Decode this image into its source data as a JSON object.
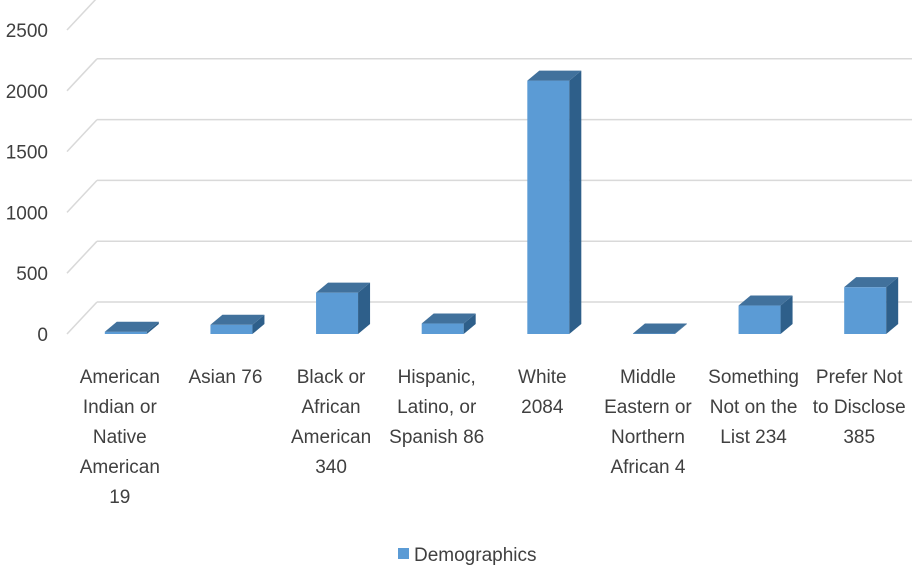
{
  "chart_data": {
    "type": "bar",
    "style": "3d-column",
    "categories": [
      "American Indian or Native American 19",
      "Asian 76",
      "Black or African American 340",
      "Hispanic, Latino, or Spanish 86",
      "White 2084",
      "Middle Eastern or Northern African 4",
      "Something Not on the List 234",
      "Prefer Not to Disclose 385"
    ],
    "category_lines": [
      [
        "American",
        "Indian or",
        "Native",
        "American",
        "19"
      ],
      [
        "Asian 76"
      ],
      [
        "Black or",
        "African",
        "American",
        "340"
      ],
      [
        "Hispanic,",
        "Latino, or",
        "Spanish 86"
      ],
      [
        "White",
        "2084"
      ],
      [
        "Middle",
        "Eastern or",
        "Northern",
        "African 4"
      ],
      [
        "Something",
        "Not on the",
        "List 234"
      ],
      [
        "Prefer Not",
        "to Disclose",
        "385"
      ]
    ],
    "series": [
      {
        "name": "Demographics",
        "values": [
          19,
          76,
          340,
          86,
          2084,
          4,
          234,
          385
        ]
      }
    ],
    "ylim": [
      0,
      2500
    ],
    "yticks": [
      0,
      500,
      1000,
      1500,
      2000,
      2500
    ],
    "grid": true,
    "legend": "bottom",
    "colors": {
      "front": "#5b9bd5",
      "side": "#2e5f8a",
      "top": "#41719c",
      "grid": "#d9d9d9"
    }
  }
}
